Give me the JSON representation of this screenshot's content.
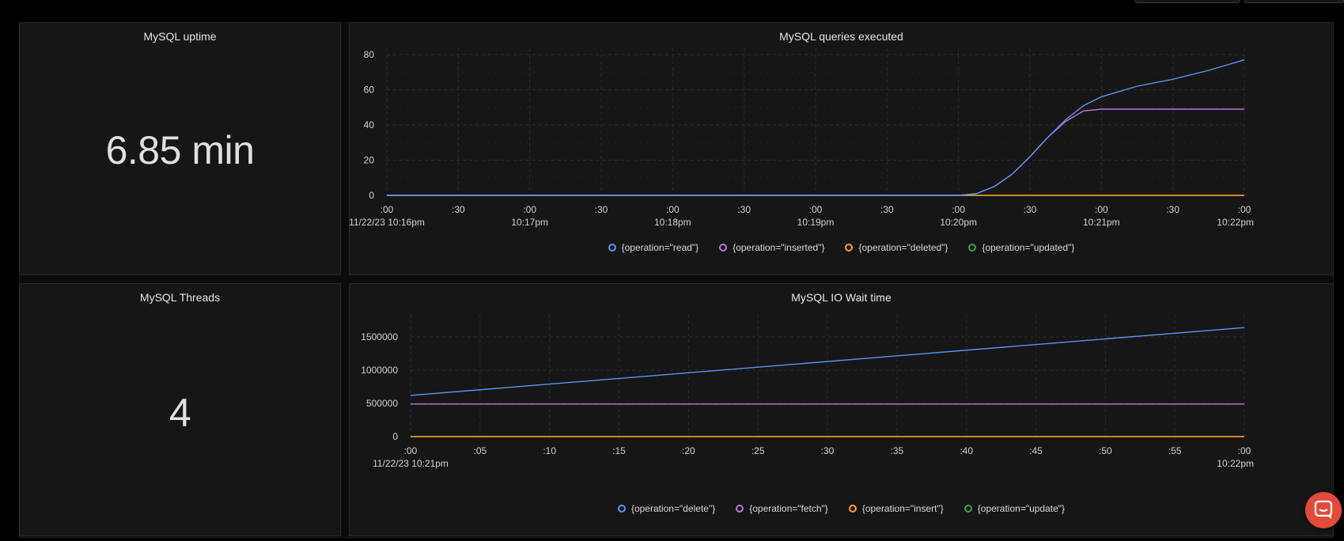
{
  "panels": {
    "uptime": {
      "title": "MySQL uptime",
      "value": "6.85 min"
    },
    "threads": {
      "title": "MySQL Threads",
      "value": "4"
    },
    "queries": {
      "title": "MySQL queries executed"
    },
    "iowait": {
      "title": "MySQL IO Wait time"
    }
  },
  "colors": {
    "blue": "#5794f2",
    "purple": "#b877d9",
    "orange": "#ff9830",
    "green": "#37a34a"
  },
  "chart_data": [
    {
      "type": "line",
      "title": "MySQL queries executed",
      "ylim": [
        0,
        80
      ],
      "y_ticks": [
        "0",
        "20",
        "40",
        "60",
        "80"
      ],
      "x_ticks": [
        {
          "top": ":00",
          "bottom": "11/22/23 10:16pm"
        },
        {
          "top": ":30",
          "bottom": ""
        },
        {
          "top": ":00",
          "bottom": "10:17pm"
        },
        {
          "top": ":30",
          "bottom": ""
        },
        {
          "top": ":00",
          "bottom": "10:18pm"
        },
        {
          "top": ":30",
          "bottom": ""
        },
        {
          "top": ":00",
          "bottom": "10:19pm"
        },
        {
          "top": ":30",
          "bottom": ""
        },
        {
          "top": ":00",
          "bottom": "10:20pm"
        },
        {
          "top": ":30",
          "bottom": ""
        },
        {
          "top": ":00",
          "bottom": "10:21pm"
        },
        {
          "top": ":30",
          "bottom": ""
        },
        {
          "top": ":00",
          "bottom": "10:22pm"
        }
      ],
      "x": [
        0,
        1,
        2,
        3,
        4,
        5,
        6,
        7,
        8,
        8.25,
        8.5,
        8.75,
        9,
        9.25,
        9.5,
        9.75,
        10,
        10.25,
        10.5,
        11,
        11.5,
        12
      ],
      "series": [
        {
          "name": "{operation=\"read\"}",
          "color": "#5794f2",
          "values": [
            0,
            0,
            0,
            0,
            0,
            0,
            0,
            0,
            0,
            1,
            5,
            12,
            22,
            33,
            43,
            51,
            56,
            59,
            62,
            66,
            71,
            77
          ]
        },
        {
          "name": "{operation=\"inserted\"}",
          "color": "#b877d9",
          "values": [
            0,
            0,
            0,
            0,
            0,
            0,
            0,
            0,
            0,
            1,
            5,
            12,
            22,
            33,
            42,
            48,
            49,
            49,
            49,
            49,
            49,
            49
          ]
        },
        {
          "name": "{operation=\"deleted\"}",
          "color": "#ff9830",
          "values": [
            0,
            0,
            0,
            0,
            0,
            0,
            0,
            0,
            0,
            0,
            0,
            0,
            0,
            0,
            0,
            0,
            0,
            0,
            0,
            0,
            0,
            0
          ]
        },
        {
          "name": "{operation=\"updated\"}",
          "color": "#37a34a",
          "values": [
            0,
            0,
            0,
            0,
            0,
            0,
            0,
            0,
            0,
            0,
            0,
            0,
            0,
            0,
            0,
            0,
            0,
            0,
            0,
            0,
            0,
            0
          ]
        }
      ]
    },
    {
      "type": "line",
      "title": "MySQL IO Wait time",
      "ylim": [
        0,
        1750000
      ],
      "y_ticks": [
        "0",
        "500000",
        "1000000",
        "1500000"
      ],
      "y_tick_values": [
        0,
        500000,
        1000000,
        1500000
      ],
      "x_ticks": [
        {
          "top": ":00",
          "bottom": "11/22/23 10:21pm"
        },
        {
          "top": ":05",
          "bottom": ""
        },
        {
          "top": ":10",
          "bottom": ""
        },
        {
          "top": ":15",
          "bottom": ""
        },
        {
          "top": ":20",
          "bottom": ""
        },
        {
          "top": ":25",
          "bottom": ""
        },
        {
          "top": ":30",
          "bottom": ""
        },
        {
          "top": ":35",
          "bottom": ""
        },
        {
          "top": ":40",
          "bottom": ""
        },
        {
          "top": ":45",
          "bottom": ""
        },
        {
          "top": ":50",
          "bottom": ""
        },
        {
          "top": ":55",
          "bottom": ""
        },
        {
          "top": ":00",
          "bottom": "10:22pm"
        }
      ],
      "x": [
        0,
        60
      ],
      "series": [
        {
          "name": "{operation=\"delete\"}",
          "color": "#5794f2",
          "values": [
            620000,
            1640000
          ]
        },
        {
          "name": "{operation=\"fetch\"}",
          "color": "#b877d9",
          "values": [
            490000,
            490000
          ]
        },
        {
          "name": "{operation=\"insert\"}",
          "color": "#ff9830",
          "values": [
            0,
            0
          ]
        },
        {
          "name": "{operation=\"update\"}",
          "color": "#37a34a",
          "values": [
            0,
            0
          ]
        }
      ]
    }
  ]
}
